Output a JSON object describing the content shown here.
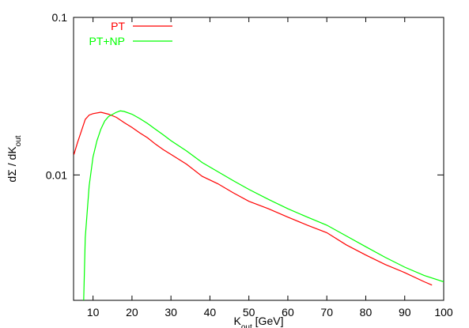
{
  "chart_data": {
    "type": "line",
    "xlabel": [
      {
        "text": "K"
      },
      {
        "text": "out",
        "sub": true
      },
      {
        "text": " [GeV]"
      }
    ],
    "ylabel": [
      {
        "text": "dΣ / dK"
      },
      {
        "text": "out",
        "sub": true
      }
    ],
    "xlim": [
      5,
      100
    ],
    "xticks": [
      10,
      20,
      30,
      40,
      50,
      60,
      70,
      80,
      90,
      100
    ],
    "ylim": [
      0.0016,
      0.1
    ],
    "yticks": [
      0.01,
      0.1
    ],
    "log_y": true,
    "legend": "top-left",
    "series": [
      {
        "name": "PT",
        "color": "#ff0000",
        "x": [
          5.1,
          6,
          7,
          8,
          9,
          10,
          12,
          14,
          16,
          18,
          20,
          22,
          24,
          26,
          28,
          30,
          34,
          38,
          42,
          46,
          50,
          55,
          60,
          65,
          70,
          75,
          80,
          85,
          90,
          95,
          97
        ],
        "values": [
          0.0135,
          0.016,
          0.019,
          0.0225,
          0.024,
          0.0245,
          0.025,
          0.0243,
          0.0232,
          0.0215,
          0.02,
          0.0185,
          0.0172,
          0.0157,
          0.0145,
          0.0135,
          0.0117,
          0.0098,
          0.0088,
          0.0077,
          0.0068,
          0.0061,
          0.0054,
          0.0048,
          0.0043,
          0.0036,
          0.0031,
          0.0027,
          0.0024,
          0.0021,
          0.002
        ]
      },
      {
        "name": "PT+NP",
        "color": "#00ff00",
        "x": [
          7.6,
          8,
          9,
          10,
          11,
          12,
          13,
          14,
          16,
          17,
          18,
          20,
          22,
          24,
          26,
          28,
          30,
          34,
          38,
          42,
          46,
          50,
          55,
          60,
          65,
          70,
          75,
          80,
          85,
          90,
          95,
          100
        ],
        "values": [
          0.0016,
          0.004,
          0.0085,
          0.013,
          0.0165,
          0.0195,
          0.022,
          0.0235,
          0.025,
          0.0255,
          0.0253,
          0.0243,
          0.0228,
          0.0212,
          0.0195,
          0.018,
          0.0165,
          0.0142,
          0.012,
          0.0105,
          0.0092,
          0.0081,
          0.007,
          0.0061,
          0.0054,
          0.0048,
          0.0041,
          0.0035,
          0.003,
          0.0026,
          0.0023,
          0.0021
        ]
      }
    ]
  }
}
